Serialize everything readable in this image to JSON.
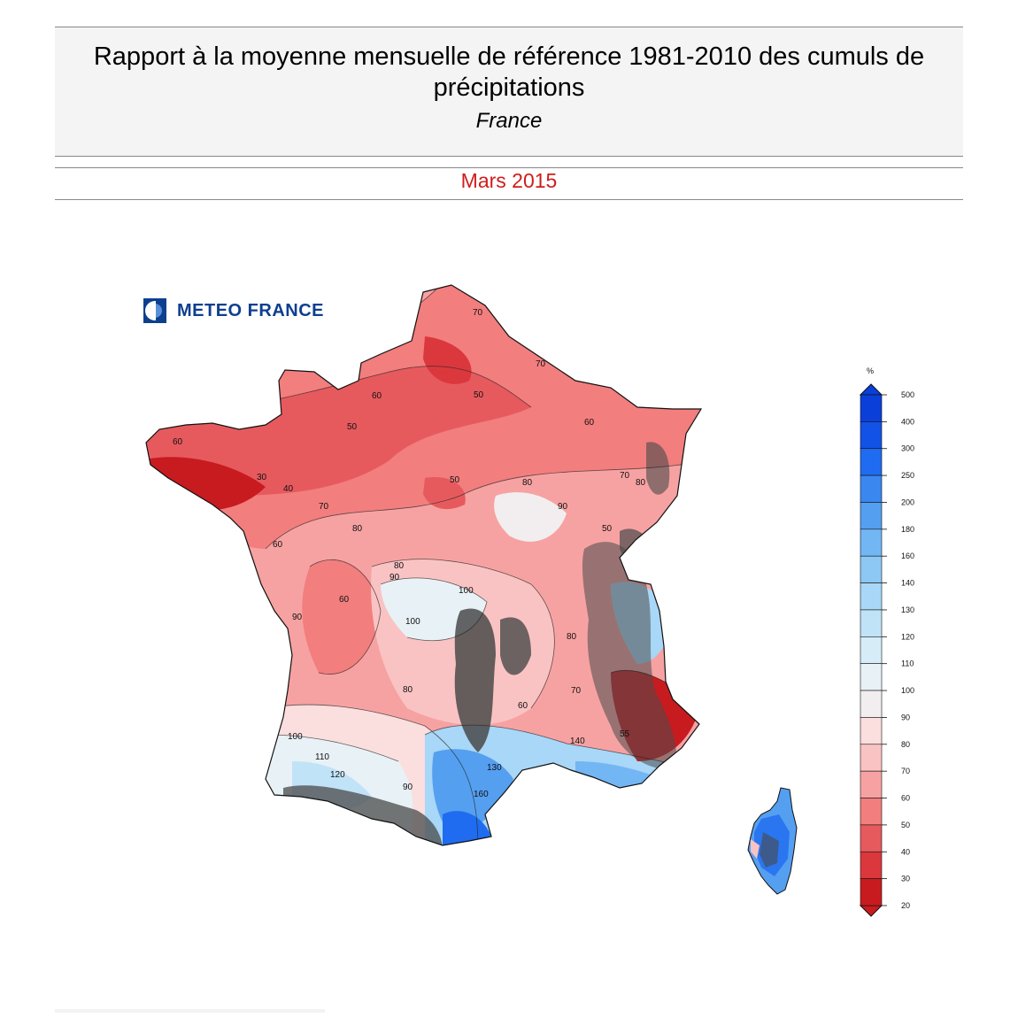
{
  "header": {
    "title": "Rapport à la moyenne mensuelle de référence 1981-2010 des cumuls de précipitations",
    "region": "France",
    "period": "Mars 2015"
  },
  "logo": {
    "text": "METEO FRANCE",
    "icon": "meteo-france-logo-icon"
  },
  "legend": {
    "unit": "%",
    "levels": [
      500,
      400,
      300,
      250,
      200,
      180,
      160,
      140,
      130,
      120,
      110,
      100,
      90,
      80,
      70,
      60,
      50,
      40,
      30,
      20
    ],
    "colors": [
      "#0a3fd9",
      "#1352e6",
      "#1f6cf0",
      "#3a87f0",
      "#559ff0",
      "#72b6f3",
      "#8dc8f5",
      "#a8d7f7",
      "#c1e3f8",
      "#d6edf8",
      "#e8f1f6",
      "#f2eef0",
      "#fbdede",
      "#fac3c3",
      "#f7a2a2",
      "#f27e7e",
      "#e65a5e",
      "#da383d",
      "#c81b20"
    ]
  },
  "map": {
    "contour_labels": [
      "70",
      "60",
      "50",
      "40",
      "30",
      "70",
      "50",
      "60",
      "70",
      "60",
      "50",
      "80",
      "80",
      "70",
      "80",
      "90",
      "100",
      "100",
      "80",
      "60",
      "70",
      "80",
      "90",
      "100",
      "110",
      "120",
      "130",
      "140",
      "160",
      "90",
      "60",
      "55",
      "50",
      "60",
      "80",
      "90"
    ],
    "colors": {
      "deep_red": "#c81b20",
      "red": "#e65a5e",
      "light_red": "#f27e7e",
      "pink": "#f7a2a2",
      "pale_pink": "#fac3c3",
      "rose": "#fbdede",
      "neutral": "#f2eef0",
      "pale_blue": "#e8f1f6",
      "light_blue": "#a8d7f7",
      "blue": "#559ff0",
      "deep_blue": "#1f6cf0",
      "relief": "#4a4a4a"
    }
  }
}
